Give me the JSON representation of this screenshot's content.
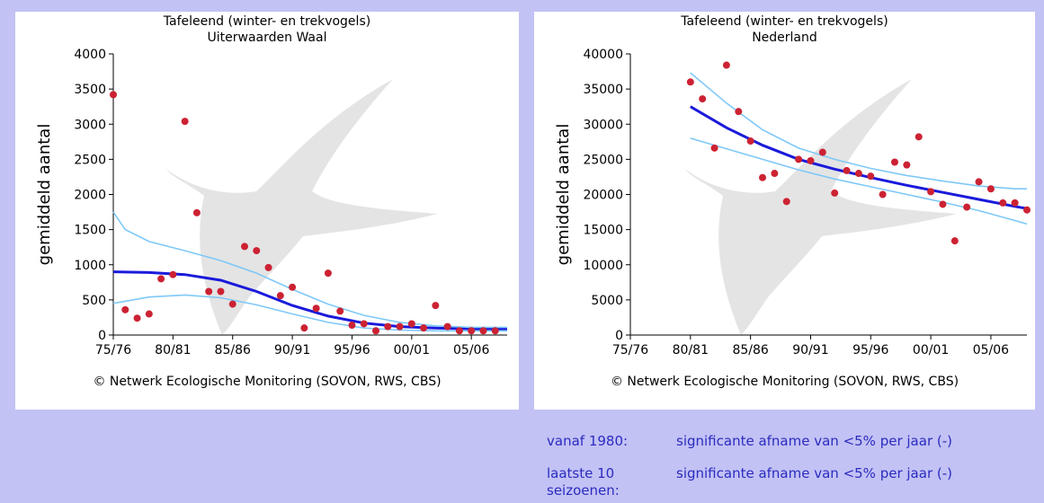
{
  "chart_data": [
    {
      "type": "scatter",
      "title": "Tafeleend (winter- en trekvogels)",
      "subtitle": "Uiterwaarden Waal",
      "ylabel": "gemiddeld aantal",
      "xlabel": "",
      "ylim": [
        0,
        4000
      ],
      "xlim": [
        1975,
        2008
      ],
      "xticks": [
        1975,
        1980,
        1985,
        1990,
        1995,
        2000,
        2005
      ],
      "xtick_labels": [
        "75/76",
        "80/81",
        "85/86",
        "90/91",
        "95/96",
        "00/01",
        "05/06"
      ],
      "yticks": [
        0,
        500,
        1000,
        1500,
        2000,
        2500,
        3000,
        3500,
        4000
      ],
      "grid": false,
      "credit": "© Netwerk Ecologische Monitoring (SOVON, RWS, CBS)",
      "points": [
        [
          1975,
          3420
        ],
        [
          1976,
          360
        ],
        [
          1977,
          240
        ],
        [
          1978,
          300
        ],
        [
          1979,
          800
        ],
        [
          1980,
          860
        ],
        [
          1981,
          3040
        ],
        [
          1982,
          1740
        ],
        [
          1983,
          620
        ],
        [
          1984,
          620
        ],
        [
          1985,
          440
        ],
        [
          1986,
          1260
        ],
        [
          1987,
          1200
        ],
        [
          1988,
          960
        ],
        [
          1989,
          560
        ],
        [
          1990,
          680
        ],
        [
          1991,
          100
        ],
        [
          1992,
          380
        ],
        [
          1993,
          880
        ],
        [
          1994,
          340
        ],
        [
          1995,
          140
        ],
        [
          1996,
          160
        ],
        [
          1997,
          60
        ],
        [
          1998,
          120
        ],
        [
          1999,
          120
        ],
        [
          2000,
          160
        ],
        [
          2001,
          100
        ],
        [
          2002,
          420
        ],
        [
          2003,
          120
        ],
        [
          2004,
          60
        ],
        [
          2005,
          60
        ],
        [
          2006,
          60
        ],
        [
          2007,
          60
        ]
      ],
      "series": [
        {
          "role": "trend",
          "color": "#1a1adb",
          "points": [
            [
              1975,
              900
            ],
            [
              1978,
              890
            ],
            [
              1981,
              860
            ],
            [
              1984,
              780
            ],
            [
              1987,
              620
            ],
            [
              1990,
              420
            ],
            [
              1993,
              270
            ],
            [
              1996,
              170
            ],
            [
              1999,
              120
            ],
            [
              2002,
              100
            ],
            [
              2005,
              90
            ],
            [
              2008,
              85
            ]
          ]
        },
        {
          "role": "upper",
          "color": "#7ec8f8",
          "points": [
            [
              1975,
              1750
            ],
            [
              1976,
              1500
            ],
            [
              1978,
              1330
            ],
            [
              1981,
              1200
            ],
            [
              1984,
              1060
            ],
            [
              1987,
              880
            ],
            [
              1990,
              650
            ],
            [
              1993,
              440
            ],
            [
              1996,
              280
            ],
            [
              1999,
              180
            ],
            [
              2002,
              130
            ],
            [
              2005,
              110
            ],
            [
              2008,
              110
            ]
          ]
        },
        {
          "role": "lower",
          "color": "#7ec8f8",
          "points": [
            [
              1975,
              450
            ],
            [
              1978,
              540
            ],
            [
              1981,
              570
            ],
            [
              1984,
              530
            ],
            [
              1987,
              430
            ],
            [
              1990,
              300
            ],
            [
              1993,
              180
            ],
            [
              1996,
              100
            ],
            [
              1999,
              70
            ],
            [
              2002,
              60
            ],
            [
              2005,
              60
            ],
            [
              2008,
              60
            ]
          ]
        }
      ]
    },
    {
      "type": "scatter",
      "title": "Tafeleend (winter- en trekvogels)",
      "subtitle": "Nederland",
      "ylabel": "gemiddeld aantal",
      "xlabel": "",
      "ylim": [
        0,
        40000
      ],
      "xlim": [
        1975,
        2008
      ],
      "xticks": [
        1975,
        1980,
        1985,
        1990,
        1995,
        2000,
        2005
      ],
      "xtick_labels": [
        "75/76",
        "80/81",
        "85/86",
        "90/91",
        "95/96",
        "00/01",
        "05/06"
      ],
      "yticks": [
        0,
        5000,
        10000,
        15000,
        20000,
        25000,
        30000,
        35000,
        40000
      ],
      "grid": false,
      "credit": "© Netwerk Ecologische Monitoring (SOVON, RWS, CBS)",
      "points": [
        [
          1980,
          36000
        ],
        [
          1981,
          33600
        ],
        [
          1982,
          26600
        ],
        [
          1983,
          38400
        ],
        [
          1984,
          31800
        ],
        [
          1985,
          27600
        ],
        [
          1986,
          22400
        ],
        [
          1987,
          23000
        ],
        [
          1988,
          19000
        ],
        [
          1989,
          25000
        ],
        [
          1990,
          24800
        ],
        [
          1991,
          26000
        ],
        [
          1992,
          20200
        ],
        [
          1993,
          23400
        ],
        [
          1994,
          23000
        ],
        [
          1995,
          22600
        ],
        [
          1996,
          20000
        ],
        [
          1997,
          24600
        ],
        [
          1998,
          24200
        ],
        [
          1999,
          28200
        ],
        [
          2000,
          20400
        ],
        [
          2001,
          18600
        ],
        [
          2002,
          13400
        ],
        [
          2003,
          18200
        ],
        [
          2004,
          21800
        ],
        [
          2005,
          20800
        ],
        [
          2006,
          18800
        ],
        [
          2007,
          18800
        ],
        [
          2008,
          17800
        ]
      ],
      "series": [
        {
          "role": "trend",
          "color": "#1a1adb",
          "points": [
            [
              1980,
              32500
            ],
            [
              1983,
              29500
            ],
            [
              1986,
              27000
            ],
            [
              1989,
              25000
            ],
            [
              1992,
              23600
            ],
            [
              1995,
              22400
            ],
            [
              1998,
              21300
            ],
            [
              2001,
              20300
            ],
            [
              2004,
              19300
            ],
            [
              2007,
              18300
            ],
            [
              2008,
              18000
            ]
          ]
        },
        {
          "role": "upper",
          "color": "#7ec8f8",
          "points": [
            [
              1980,
              37300
            ],
            [
              1983,
              33000
            ],
            [
              1986,
              29200
            ],
            [
              1989,
              26600
            ],
            [
              1992,
              25000
            ],
            [
              1995,
              23700
            ],
            [
              1998,
              22700
            ],
            [
              2001,
              21900
            ],
            [
              2004,
              21200
            ],
            [
              2007,
              20800
            ],
            [
              2008,
              20800
            ]
          ]
        },
        {
          "role": "lower",
          "color": "#7ec8f8",
          "points": [
            [
              1980,
              28000
            ],
            [
              1983,
              26500
            ],
            [
              1986,
              25000
            ],
            [
              1989,
              23500
            ],
            [
              1992,
              22200
            ],
            [
              1995,
              21100
            ],
            [
              1998,
              20000
            ],
            [
              2001,
              18900
            ],
            [
              2004,
              17700
            ],
            [
              2007,
              16300
            ],
            [
              2008,
              15800
            ]
          ]
        }
      ]
    }
  ],
  "trends": [
    {
      "label": "vanaf 1980:",
      "value": "significante afname van <5% per jaar (-)"
    },
    {
      "label": "laatste 10 seizoenen:",
      "value": "significante afname van <5% per jaar (-)"
    }
  ]
}
